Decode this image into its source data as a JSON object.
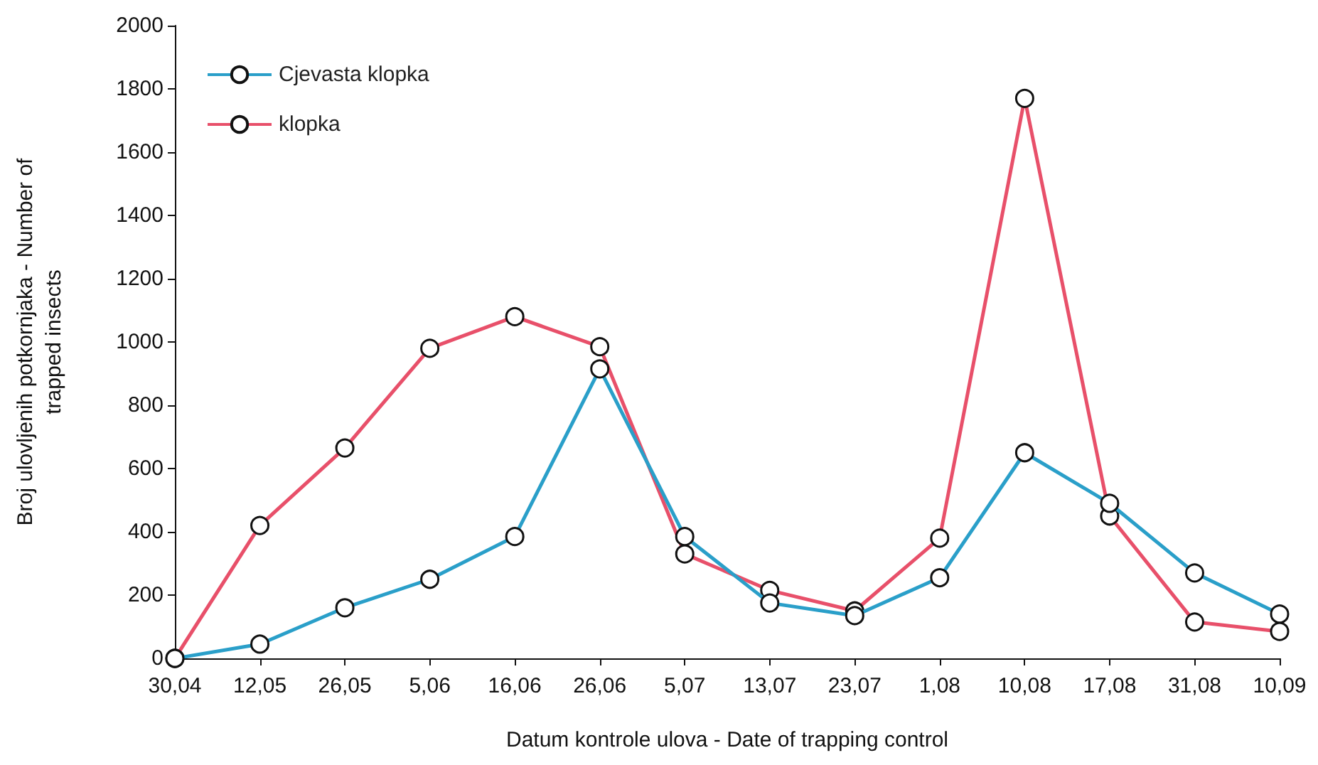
{
  "chart_data": {
    "type": "line",
    "xlabel": "Datum kontrole ulova - Date of trapping control",
    "ylabel": "Broj ulovljenih potkornjaka - Number of\ntrapped insects",
    "categories": [
      "30,04",
      "12,05",
      "26,05",
      "5,06",
      "16,06",
      "26,06",
      "5,07",
      "13,07",
      "23,07",
      "1,08",
      "10,08",
      "17,08",
      "31,08",
      "10,09"
    ],
    "series": [
      {
        "name": "Cjevasta klopka",
        "color": "#2a9fc9",
        "values": [
          0,
          45,
          160,
          250,
          385,
          915,
          385,
          175,
          135,
          255,
          650,
          490,
          270,
          140
        ]
      },
      {
        "name": "klopka",
        "color": "#e8506a",
        "values": [
          0,
          420,
          665,
          980,
          1080,
          985,
          330,
          215,
          150,
          380,
          1770,
          450,
          115,
          85
        ]
      }
    ],
    "ylim": [
      0,
      2000
    ],
    "yticks": [
      0,
      200,
      400,
      600,
      800,
      1000,
      1200,
      1400,
      1600,
      1800,
      2000
    ],
    "grid": false,
    "legend": "top left",
    "marker": "circle",
    "line_style": "solid"
  }
}
